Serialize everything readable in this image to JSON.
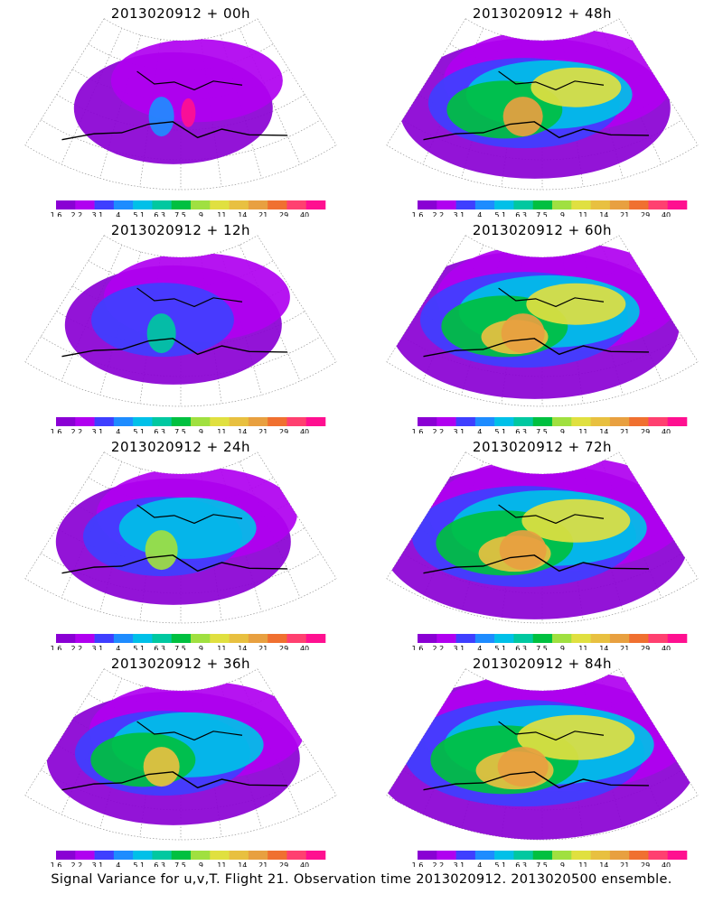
{
  "palette": [
    "#8a00d4",
    "#b000f0",
    "#3f3fff",
    "#1e8cff",
    "#00c0e8",
    "#00c8a0",
    "#00c040",
    "#a0e040",
    "#e0e040",
    "#e8c040",
    "#e8a040",
    "#f07030",
    "#ff4070",
    "#ff1090"
  ],
  "colorbar_ticks": [
    "1.6",
    "2.2",
    "3.1",
    "4",
    "5.1",
    "6.3",
    "7.5",
    "9",
    "11",
    "14",
    "21",
    "29",
    "40"
  ],
  "footer": "Signal Variance for u,v,T. Flight 21. Observation time 2013020912. 2013020500 ensemble.",
  "chart_data": [
    {
      "type": "heatmap",
      "title": "2013020912 + 00h",
      "level": 0
    },
    {
      "type": "heatmap",
      "title": "2013020912 + 48h",
      "level": 4
    },
    {
      "type": "heatmap",
      "title": "2013020912 + 12h",
      "level": 1
    },
    {
      "type": "heatmap",
      "title": "2013020912 + 60h",
      "level": 5
    },
    {
      "type": "heatmap",
      "title": "2013020912 + 24h",
      "level": 2
    },
    {
      "type": "heatmap",
      "title": "2013020912 + 72h",
      "level": 6
    },
    {
      "type": "heatmap",
      "title": "2013020912 + 36h",
      "level": 3
    },
    {
      "type": "heatmap",
      "title": "2013020912 + 84h",
      "level": 7
    }
  ]
}
